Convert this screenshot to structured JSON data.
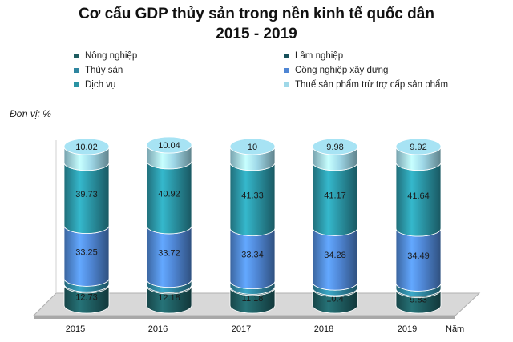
{
  "title_line1": "Cơ cấu GDP thủy sản trong nền kinh tế quốc dân",
  "title_line2": "2015 - 2019",
  "unit_label": "Đơn vị: %",
  "x_axis_unit": "Năm",
  "colors": {
    "nong_nghiep": "#1e5c60",
    "lam_nghiep": "#16505a",
    "thuy_san": "#2f86a0",
    "cong_nghiep": "#4f86d4",
    "dich_vu": "#2a93a3",
    "thue": "#9fd8e8"
  },
  "chart_data": {
    "type": "bar",
    "stacked": true,
    "style": "3d-cylinder",
    "title": "Cơ cấu GDP thủy sản trong nền kinh tế quốc dân 2015 - 2019",
    "ylabel": "Đơn vị: %",
    "xlabel": "Năm",
    "categories": [
      "2015",
      "2016",
      "2017",
      "2018",
      "2019"
    ],
    "legend_placement": "top",
    "series": [
      {
        "name": "Nông nghiệp",
        "key": "nong_nghiep",
        "values": [
          12.73,
          12.18,
          11.18,
          10.4,
          9.83
        ]
      },
      {
        "name": "Lâm nghiệp",
        "key": "lam_nghiep",
        "values": [
          0.74,
          0.75,
          0.74,
          0.73,
          0.73
        ]
      },
      {
        "name": "Thủy sản",
        "key": "thuy_san",
        "values": [
          3.53,
          3.39,
          3.42,
          3.43,
          3.4
        ]
      },
      {
        "name": "Công nghiệp xây dựng",
        "key": "cong_nghiep",
        "values": [
          33.25,
          33.72,
          33.34,
          34.28,
          34.49
        ]
      },
      {
        "name": "Dịch vụ",
        "key": "dich_vu",
        "values": [
          39.73,
          40.92,
          41.33,
          41.17,
          41.64
        ]
      },
      {
        "name": "Thuế sản phẩm trừ trợ cấp sản phẩm",
        "key": "thue",
        "values": [
          10.02,
          10.04,
          10,
          9.98,
          9.92
        ]
      }
    ]
  }
}
